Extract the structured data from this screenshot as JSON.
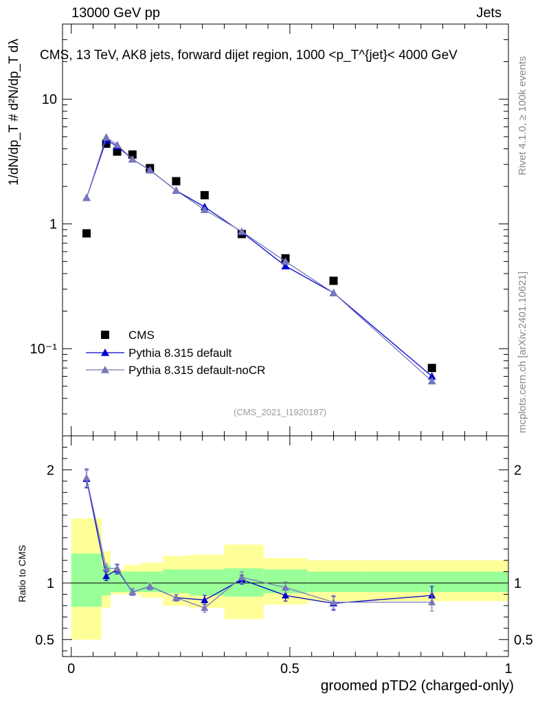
{
  "header": {
    "energy_label": "13000 GeV pp",
    "category_label": "Jets"
  },
  "side_labels": {
    "rivet": "Rivet 4.1.0, ≥ 100k events",
    "mcplots": "mcplots.cern.ch [arXiv:2401.10621]"
  },
  "watermark": "(CMS_2021_I1920187)",
  "colors": {
    "data": "#000000",
    "default": "#0000cc",
    "nocr": "#7777bb",
    "band_inner": "#99ff99",
    "band_outer": "#ffff99"
  },
  "chart_data": [
    {
      "type": "scatter",
      "title": "CMS, 13 TeV, AK8 jets, forward dijet region, 1000 <p_T^{jet}< 4000 GeV",
      "ylabel": "1/dN/dp_T # d²N/dp_T dλ",
      "yscale": "log",
      "ylim": [
        0.02,
        40
      ],
      "xlim": [
        -0.02,
        1.0
      ],
      "y_tick_labels": [
        "10⁻¹",
        "1",
        "10"
      ],
      "y_ticks": [
        0.1,
        1,
        10
      ],
      "legend_position": "bottom-left",
      "series": [
        {
          "name": "CMS",
          "marker": "square",
          "x": [
            0.035,
            0.08,
            0.105,
            0.14,
            0.18,
            0.24,
            0.305,
            0.39,
            0.49,
            0.6,
            0.825
          ],
          "y": [
            0.84,
            4.4,
            3.8,
            3.6,
            2.8,
            2.2,
            1.7,
            0.83,
            0.53,
            0.35,
            0.07
          ]
        },
        {
          "name": "Pythia 8.315 default",
          "marker": "triangle",
          "x": [
            0.035,
            0.08,
            0.105,
            0.14,
            0.18,
            0.24,
            0.305,
            0.39,
            0.49,
            0.6,
            0.825
          ],
          "y": [
            1.62,
            4.7,
            4.2,
            3.3,
            2.7,
            1.85,
            1.37,
            0.86,
            0.46,
            0.28,
            0.06
          ]
        },
        {
          "name": "Pythia 8.315 default-noCR",
          "marker": "triangle",
          "x": [
            0.035,
            0.08,
            0.105,
            0.14,
            0.18,
            0.24,
            0.305,
            0.39,
            0.49,
            0.6,
            0.825
          ],
          "y": [
            1.62,
            4.95,
            4.3,
            3.3,
            2.7,
            1.85,
            1.3,
            0.87,
            0.5,
            0.28,
            0.055
          ]
        }
      ]
    },
    {
      "type": "scatter",
      "ylabel": "Ratio to CMS",
      "xlabel": "groomed pTD2 (charged-only)",
      "xlim": [
        -0.02,
        1.0
      ],
      "ylim": [
        0.35,
        2.3
      ],
      "x_ticks": [
        0,
        0.5,
        1
      ],
      "x_tick_labels": [
        "0",
        "0.5",
        "1"
      ],
      "y_ticks": [
        0.5,
        1,
        2
      ],
      "y_tick_labels": [
        "0.5",
        "1",
        "2"
      ],
      "reference_line": 1,
      "bands": {
        "edges": [
          0,
          0.07,
          0.09,
          0.12,
          0.16,
          0.21,
          0.27,
          0.35,
          0.44,
          0.54,
          0.67,
          1.0
        ],
        "inner_low": [
          0.79,
          0.89,
          0.92,
          0.92,
          0.92,
          0.91,
          0.89,
          0.88,
          0.91,
          0.92,
          0.92
        ],
        "inner_high": [
          1.26,
          1.16,
          1.1,
          1.1,
          1.1,
          1.12,
          1.12,
          1.13,
          1.12,
          1.1,
          1.1
        ],
        "outer_low": [
          0.5,
          0.78,
          0.9,
          0.9,
          0.87,
          0.8,
          0.78,
          0.68,
          0.81,
          0.84,
          0.84
        ],
        "outer_high": [
          1.57,
          1.28,
          1.12,
          1.16,
          1.18,
          1.24,
          1.25,
          1.34,
          1.22,
          1.2,
          1.2
        ]
      },
      "series": [
        {
          "name": "Pythia 8.315 default",
          "x": [
            0.035,
            0.08,
            0.105,
            0.14,
            0.18,
            0.24,
            0.305,
            0.39,
            0.49,
            0.6,
            0.825
          ],
          "y": [
            1.92,
            1.06,
            1.12,
            0.92,
            0.97,
            0.87,
            0.85,
            1.03,
            0.89,
            0.82,
            0.89
          ],
          "err": [
            0.08,
            0.04,
            0.04,
            0.03,
            0.03,
            0.03,
            0.04,
            0.04,
            0.05,
            0.06,
            0.08
          ]
        },
        {
          "name": "Pythia 8.315 default-noCR",
          "x": [
            0.035,
            0.08,
            0.105,
            0.14,
            0.18,
            0.24,
            0.305,
            0.39,
            0.49,
            0.6,
            0.825
          ],
          "y": [
            1.93,
            1.13,
            1.13,
            0.92,
            0.97,
            0.87,
            0.78,
            1.05,
            0.96,
            0.83,
            0.83
          ],
          "err": [
            0.08,
            0.04,
            0.04,
            0.03,
            0.03,
            0.03,
            0.04,
            0.05,
            0.05,
            0.06,
            0.08
          ]
        }
      ]
    }
  ]
}
